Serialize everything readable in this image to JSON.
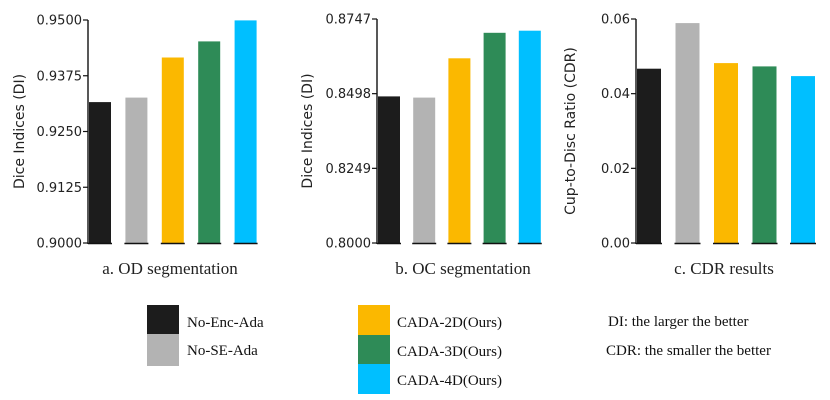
{
  "legend": [
    {
      "label": "No-Enc-Ada",
      "color": "#1c1c1c"
    },
    {
      "label": "No-SE-Ada",
      "color": "#b3b3b3"
    },
    {
      "label": "CADA-2D(Ours)",
      "color": "#fbb800"
    },
    {
      "label": "CADA-3D(Ours)",
      "color": "#2e8b57"
    },
    {
      "label": "CADA-4D(Ours)",
      "color": "#00bfff"
    }
  ],
  "notes": {
    "di": "DI: the larger the better",
    "cdr": "CDR: the smaller the better"
  },
  "chart_data": [
    {
      "type": "bar",
      "title": "a. OD segmentation",
      "xlabel": "",
      "ylabel": "Dice Indices (DI)",
      "categories": [
        "No-Enc-Ada",
        "No-SE-Ada",
        "CADA-2D(Ours)",
        "CADA-3D(Ours)",
        "CADA-4D(Ours)"
      ],
      "values": [
        0.9316,
        0.9326,
        0.9416,
        0.9452,
        0.9499
      ],
      "ylim": [
        0.9,
        0.95
      ],
      "yticks": [
        "0.9000",
        "0.9125",
        "0.9250",
        "0.9375",
        "0.9500"
      ],
      "colors": [
        "#1c1c1c",
        "#b3b3b3",
        "#fbb800",
        "#2e8b57",
        "#00bfff"
      ]
    },
    {
      "type": "bar",
      "title": "b. OC segmentation",
      "xlabel": "",
      "ylabel": "Dice Indices (DI)",
      "categories": [
        "No-Enc-Ada",
        "No-SE-Ada",
        "CADA-2D(Ours)",
        "CADA-3D(Ours)",
        "CADA-4D(Ours)"
      ],
      "values": [
        0.8489,
        0.8485,
        0.8616,
        0.8701,
        0.8708
      ],
      "ylim": [
        0.8,
        0.8747
      ],
      "yticks": [
        "0.8000",
        "0.8249",
        "0.8498",
        "0.8747"
      ],
      "colors": [
        "#1c1c1c",
        "#b3b3b3",
        "#fbb800",
        "#2e8b57",
        "#00bfff"
      ]
    },
    {
      "type": "bar",
      "title": "c. CDR  results",
      "xlabel": "",
      "ylabel": "Cup-to-Disc Ratio (CDR)",
      "categories": [
        "No-Enc-Ada",
        "No-SE-Ada",
        "CADA-2D(Ours)",
        "CADA-3D(Ours)",
        "CADA-4D(Ours)"
      ],
      "values": [
        0.0467,
        0.0589,
        0.0482,
        0.0473,
        0.0447
      ],
      "ylim": [
        0,
        0.06
      ],
      "yticks": [
        "0.00",
        "0.02",
        "0.04",
        "0.06"
      ],
      "colors": [
        "#1c1c1c",
        "#b3b3b3",
        "#fbb800",
        "#2e8b57",
        "#00bfff"
      ]
    }
  ]
}
